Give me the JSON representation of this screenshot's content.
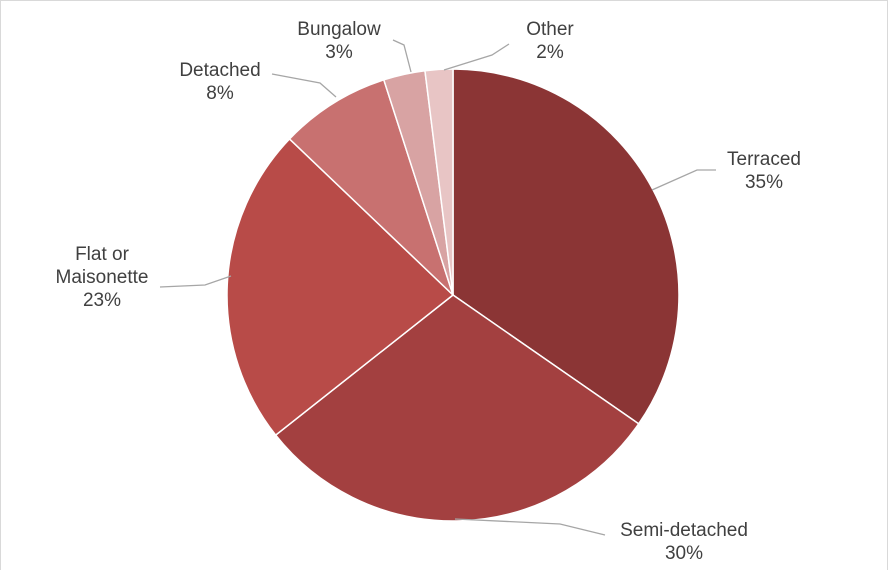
{
  "chart_data": {
    "type": "pie",
    "title": "",
    "slices": [
      {
        "name": "Terraced",
        "value": 35,
        "percent_label": "35%",
        "color": "#8b3535"
      },
      {
        "name": "Semi-detached",
        "value": 30,
        "percent_label": "30%",
        "color": "#a34040"
      },
      {
        "name": "Flat or Maisonette",
        "value": 23,
        "percent_label": "23%",
        "color": "#b84b48"
      },
      {
        "name": "Detached",
        "value": 8,
        "percent_label": "8%",
        "color": "#c87170"
      },
      {
        "name": "Bungalow",
        "value": 3,
        "percent_label": "3%",
        "color": "#d8a3a3"
      },
      {
        "name": "Other",
        "value": 2,
        "percent_label": "2%",
        "color": "#e8c5c5"
      }
    ],
    "legend": "none",
    "start_angle": "12 o'clock",
    "direction": "clockwise"
  }
}
